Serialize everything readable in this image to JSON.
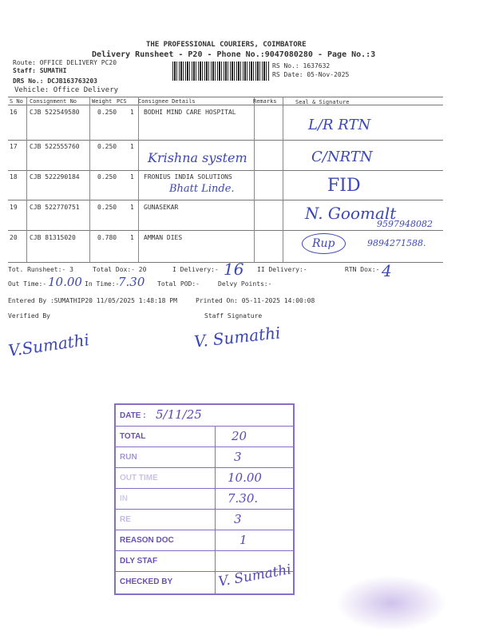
{
  "header": {
    "company": "THE PROFESSIONAL COURIERS, COIMBATORE",
    "subtitle": "Delivery Runsheet - P20 - Phone No.:9047080280 - Page No.:3",
    "route": "Route: OFFICE DELIVERY PC20",
    "staff": "Staff: SUMATHI",
    "drs": "DRS No.: DCJB163763203",
    "vehicle": "Vehicle: Office Delivery",
    "rs_no": "RS No.: 1637632",
    "rs_date": "RS Date: 05-Nov-2025"
  },
  "table": {
    "columns": [
      "S No",
      "Consignment No",
      "Weight",
      "PCS",
      "Consignee Details",
      "Remarks",
      "Seal & Signature"
    ],
    "rows": [
      {
        "sno": "16",
        "consignment": "CJB 522549580",
        "weight": "0.250",
        "pcs": "1",
        "consignee": "BODHI MIND CARE HOSPITAL",
        "handwritten_consignee": "",
        "seal": "L/R RTN",
        "seal2": ""
      },
      {
        "sno": "17",
        "consignment": "CJB 522555760",
        "weight": "0.250",
        "pcs": "1",
        "consignee": "",
        "handwritten_consignee": "Krishna system",
        "seal": "C/NRTN",
        "seal2": ""
      },
      {
        "sno": "18",
        "consignment": "CJB 522290184",
        "weight": "0.250",
        "pcs": "1",
        "consignee": "FRONIUS INDIA SOLUTIONS",
        "handwritten_consignee": "Bhatt Linde.",
        "seal": "FID",
        "seal2": ""
      },
      {
        "sno": "19",
        "consignment": "CJB 522770751",
        "weight": "0.250",
        "pcs": "1",
        "consignee": "GUNASEKAR",
        "handwritten_consignee": "",
        "seal": "N. Goomalt",
        "seal2": "9597948082"
      },
      {
        "sno": "20",
        "consignment": "CJB 81315020",
        "weight": "0.780",
        "pcs": "1",
        "consignee": "AMMAN DIES",
        "handwritten_consignee": "",
        "seal": "Rup",
        "seal2": "9894271588."
      }
    ]
  },
  "summary": {
    "tot_runsheet": "Tot. Runsheet:- 3",
    "total_dox": "Total Dox:-   20",
    "i_delivery": "I Delivery:-",
    "i_delivery_value": "16",
    "ii_delivery": "II Delivery:-",
    "rtn_dox": "RTN Dox:-",
    "rtn_dox_value": "4",
    "out_time": "Out Time:-",
    "out_time_value": "10.00",
    "in_time": "In Time:-",
    "in_time_value": "7.30",
    "total_pod": "Total POD:-",
    "delvy_points": "Delvy Points:-",
    "entered_by": "Entered By :SUMATHIP20 11/05/2025 1:48:18 PM",
    "printed_on": "Printed On: 05-11-2025 14:00:08",
    "verified_by": "Verified By",
    "staff_signature": "Staff Signature",
    "verified_sign": "V.Sumathi",
    "staff_sign": "V. Sumathi"
  },
  "stamp": {
    "color": "#8a6cc9",
    "rows": [
      {
        "label": "DATE :",
        "value": "5/11/25"
      },
      {
        "label": "TOTAL",
        "value": "20"
      },
      {
        "label": "RUN",
        "value": "3"
      },
      {
        "label": "OUT TIME",
        "value": "10.00"
      },
      {
        "label": "IN",
        "value": "7.30."
      },
      {
        "label": "RE",
        "value": "3"
      },
      {
        "label": "REASON DOC",
        "value": "1"
      },
      {
        "label": "DLY STAF",
        "value": ""
      },
      {
        "label": "CHECKED BY",
        "value": "V. Sumathi"
      }
    ]
  }
}
